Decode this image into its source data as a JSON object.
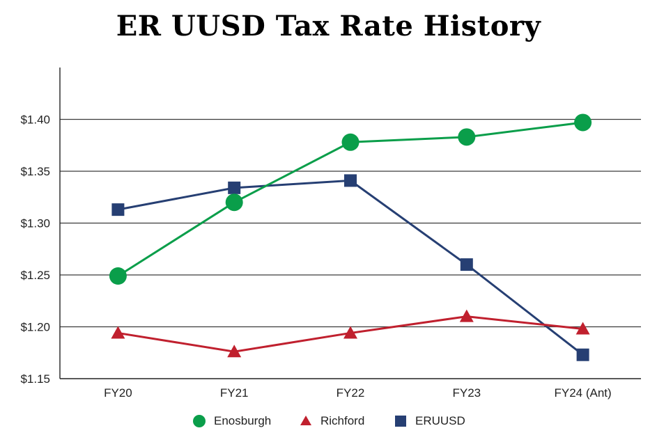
{
  "chart_data": {
    "type": "line",
    "title": "ER UUSD Tax Rate History",
    "categories": [
      "FY20",
      "FY21",
      "FY22",
      "FY23",
      "FY24 (Ant)"
    ],
    "ylim": [
      1.15,
      1.45
    ],
    "yticks": [
      1.15,
      1.2,
      1.25,
      1.3,
      1.35,
      1.4
    ],
    "ytick_labels": [
      "$1.15",
      "$1.20",
      "$1.25",
      "$1.30",
      "$1.35",
      "$1.40"
    ],
    "grid": true,
    "legend_position": "bottom",
    "series": [
      {
        "name": "Enosburgh",
        "marker": "circle",
        "color": "#0a9e4a",
        "values": [
          1.249,
          1.32,
          1.378,
          1.383,
          1.397
        ]
      },
      {
        "name": "Richford",
        "marker": "triangle",
        "color": "#c0202e",
        "values": [
          1.194,
          1.176,
          1.194,
          1.21,
          1.198
        ]
      },
      {
        "name": "ERUUSD",
        "marker": "square",
        "color": "#263f73",
        "values": [
          1.313,
          1.334,
          1.341,
          1.26,
          1.173
        ]
      }
    ]
  }
}
